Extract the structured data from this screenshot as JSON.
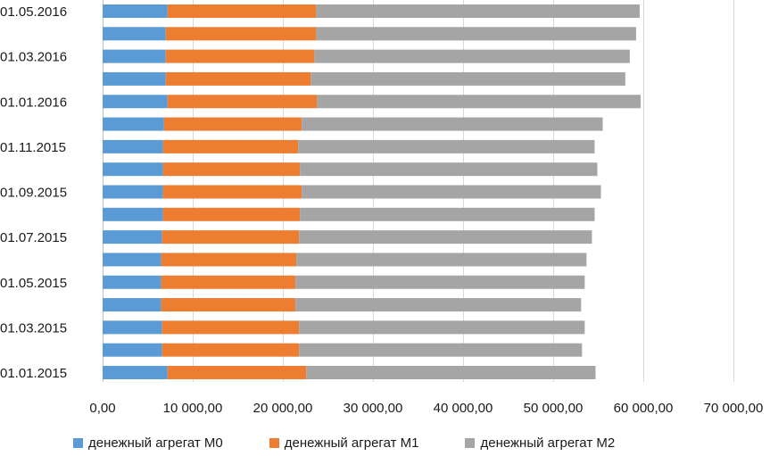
{
  "chart_data": {
    "type": "bar",
    "orientation": "horizontal",
    "stacked": true,
    "categories": [
      "01.01.2015",
      "",
      "01.03.2015",
      "",
      "01.05.2015",
      "",
      "01.07.2015",
      "",
      "01.09.2015",
      "",
      "01.11.2015",
      "",
      "01.01.2016",
      "",
      "01.03.2016",
      "",
      "01.05.2016"
    ],
    "series": [
      {
        "name": "денежный агрегат М0",
        "color": "#5b9bd5",
        "values": [
          7200,
          6600,
          6600,
          6500,
          6500,
          6500,
          6600,
          6700,
          6700,
          6700,
          6700,
          6800,
          7200,
          7000,
          7000,
          7000,
          7200
        ]
      },
      {
        "name": "денежный агрегат М1",
        "color": "#ed7d31",
        "values": [
          15400,
          15200,
          15200,
          14900,
          14900,
          15000,
          15200,
          15200,
          15400,
          15200,
          15000,
          15300,
          16600,
          16100,
          16500,
          16700,
          16500
        ]
      },
      {
        "name": "денежный агрегат М2",
        "color": "#a5a5a5",
        "values": [
          32100,
          31400,
          31700,
          31700,
          32100,
          32200,
          32500,
          32700,
          33200,
          33000,
          32900,
          33400,
          35900,
          34900,
          35000,
          35500,
          35900
        ]
      }
    ],
    "xlim": [
      0,
      70000
    ],
    "xticks": [
      "0,00",
      "10 000,00",
      "20 000,00",
      "30 000,00",
      "40 000,00",
      "50 000,00",
      "60 000,00",
      "70 000,00"
    ],
    "xtick_values": [
      0,
      10000,
      20000,
      30000,
      40000,
      50000,
      60000,
      70000
    ],
    "grid": true,
    "legend": "bottom"
  }
}
